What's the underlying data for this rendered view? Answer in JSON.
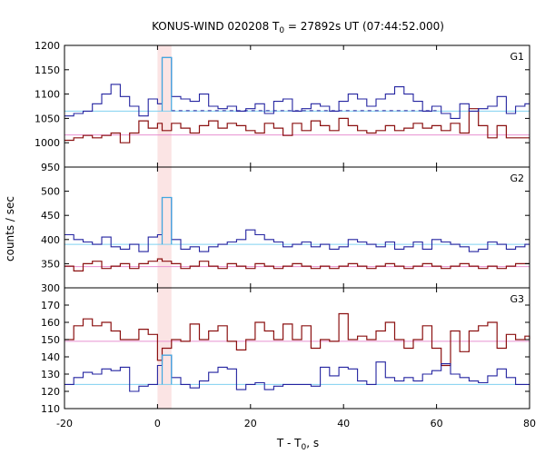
{
  "chart_data": {
    "type": "line",
    "title": {
      "prefix": "KONUS-WIND 020208 T",
      "sub": "0",
      "suffix": " = 27892s UT (07:44:52.000)"
    },
    "xlabel": {
      "prefix": "T - T",
      "sub": "0",
      "suffix": ", s"
    },
    "ylabel": "counts / sec",
    "xlim": [
      -20,
      80
    ],
    "xticks": [
      -20,
      0,
      20,
      40,
      60,
      80
    ],
    "highlight_band": {
      "x": [
        0,
        3
      ],
      "color": "#fbe4e4"
    },
    "colors": {
      "blue": "#2323a0",
      "red": "#8b1010",
      "cyan": "#40a8e0",
      "light_cyan": "#7fd0f0",
      "pink": "#e890d0"
    },
    "panels": [
      {
        "name": "G1",
        "ylim": [
          950,
          1200
        ],
        "yticks": [
          950,
          1000,
          1050,
          1100,
          1150,
          1200
        ],
        "cyan_level": 1065,
        "dashed_level": 1066,
        "pink_level": 1016,
        "blue": {
          "x": [
            -20,
            -18,
            -16,
            -14,
            -12,
            -10,
            -8,
            -6,
            -4,
            -2,
            0,
            1,
            3,
            5,
            7,
            9,
            11,
            13,
            15,
            17,
            19,
            21,
            23,
            25,
            27,
            29,
            31,
            33,
            35,
            37,
            39,
            41,
            43,
            45,
            47,
            49,
            51,
            53,
            55,
            57,
            59,
            61,
            63,
            65,
            67,
            69,
            71,
            73,
            75,
            77,
            79,
            80
          ],
          "y": [
            1055,
            1060,
            1065,
            1080,
            1100,
            1120,
            1095,
            1075,
            1055,
            1090,
            1080,
            1175,
            1095,
            1090,
            1085,
            1100,
            1075,
            1070,
            1075,
            1065,
            1070,
            1080,
            1060,
            1085,
            1090,
            1065,
            1070,
            1080,
            1075,
            1065,
            1085,
            1100,
            1090,
            1075,
            1090,
            1100,
            1115,
            1100,
            1085,
            1065,
            1075,
            1060,
            1050,
            1080,
            1065,
            1070,
            1075,
            1095,
            1060,
            1075,
            1080,
            1080
          ]
        },
        "red": {
          "x": [
            -20,
            -18,
            -16,
            -14,
            -12,
            -10,
            -8,
            -6,
            -4,
            -2,
            0,
            1,
            3,
            5,
            7,
            9,
            11,
            13,
            15,
            17,
            19,
            21,
            23,
            25,
            27,
            29,
            31,
            33,
            35,
            37,
            39,
            41,
            43,
            45,
            47,
            49,
            51,
            53,
            55,
            57,
            59,
            61,
            63,
            65,
            67,
            69,
            71,
            73,
            75,
            77,
            79,
            80
          ],
          "y": [
            1005,
            1010,
            1015,
            1010,
            1015,
            1020,
            1000,
            1020,
            1045,
            1030,
            1040,
            1025,
            1040,
            1030,
            1020,
            1035,
            1045,
            1030,
            1040,
            1035,
            1025,
            1020,
            1040,
            1030,
            1015,
            1040,
            1025,
            1045,
            1035,
            1025,
            1050,
            1035,
            1025,
            1020,
            1025,
            1035,
            1025,
            1030,
            1040,
            1030,
            1035,
            1025,
            1040,
            1020,
            1070,
            1035,
            1010,
            1035,
            1010,
            1010,
            1010,
            1010
          ]
        }
      },
      {
        "name": "G2",
        "ylim": [
          300,
          550
        ],
        "yticks": [
          300,
          350,
          400,
          450,
          500
        ],
        "cyan_level": 390,
        "pink_level": 344,
        "blue": {
          "x": [
            -20,
            -18,
            -16,
            -14,
            -12,
            -10,
            -8,
            -6,
            -4,
            -2,
            0,
            1,
            3,
            5,
            7,
            9,
            11,
            13,
            15,
            17,
            19,
            21,
            23,
            25,
            27,
            29,
            31,
            33,
            35,
            37,
            39,
            41,
            43,
            45,
            47,
            49,
            51,
            53,
            55,
            57,
            59,
            61,
            63,
            65,
            67,
            69,
            71,
            73,
            75,
            77,
            79,
            80
          ],
          "y": [
            410,
            400,
            395,
            390,
            405,
            385,
            380,
            390,
            375,
            405,
            410,
            487,
            400,
            380,
            385,
            375,
            385,
            390,
            395,
            400,
            420,
            410,
            400,
            395,
            385,
            390,
            395,
            385,
            390,
            380,
            385,
            400,
            395,
            390,
            385,
            395,
            380,
            385,
            395,
            380,
            400,
            395,
            390,
            385,
            375,
            380,
            395,
            390,
            380,
            385,
            390,
            390
          ]
        },
        "red": {
          "x": [
            -20,
            -18,
            -16,
            -14,
            -12,
            -10,
            -8,
            -6,
            -4,
            -2,
            0,
            1,
            3,
            5,
            7,
            9,
            11,
            13,
            15,
            17,
            19,
            21,
            23,
            25,
            27,
            29,
            31,
            33,
            35,
            37,
            39,
            41,
            43,
            45,
            47,
            49,
            51,
            53,
            55,
            57,
            59,
            61,
            63,
            65,
            67,
            69,
            71,
            73,
            75,
            77,
            79,
            80
          ],
          "y": [
            345,
            335,
            350,
            355,
            340,
            345,
            350,
            340,
            350,
            355,
            360,
            355,
            350,
            340,
            345,
            355,
            345,
            340,
            350,
            345,
            340,
            350,
            345,
            340,
            345,
            350,
            345,
            340,
            345,
            340,
            345,
            350,
            345,
            340,
            345,
            350,
            345,
            340,
            345,
            350,
            345,
            340,
            345,
            350,
            345,
            340,
            345,
            340,
            345,
            350,
            350,
            350
          ]
        }
      },
      {
        "name": "G3",
        "ylim": [
          110,
          180
        ],
        "yticks": [
          110,
          120,
          130,
          140,
          150,
          160,
          170
        ],
        "cyan_level": 124,
        "pink_level": 149,
        "blue": {
          "x": [
            -20,
            -18,
            -16,
            -14,
            -12,
            -10,
            -8,
            -6,
            -4,
            -2,
            0,
            1,
            3,
            5,
            7,
            9,
            11,
            13,
            15,
            17,
            19,
            21,
            23,
            25,
            27,
            29,
            31,
            33,
            35,
            37,
            39,
            41,
            43,
            45,
            47,
            49,
            51,
            53,
            55,
            57,
            59,
            61,
            63,
            65,
            67,
            69,
            71,
            73,
            75,
            77,
            79,
            80
          ],
          "y": [
            124,
            128,
            131,
            130,
            133,
            132,
            134,
            120,
            123,
            124,
            135,
            141,
            128,
            124,
            122,
            126,
            131,
            134,
            133,
            121,
            124,
            125,
            121,
            123,
            124,
            124,
            124,
            123,
            134,
            129,
            134,
            133,
            126,
            124,
            137,
            128,
            126,
            128,
            126,
            130,
            132,
            136,
            130,
            128,
            126,
            125,
            129,
            133,
            128,
            124,
            124,
            124
          ]
        },
        "red": {
          "x": [
            -20,
            -18,
            -16,
            -14,
            -12,
            -10,
            -8,
            -6,
            -4,
            -2,
            0,
            1,
            3,
            5,
            7,
            9,
            11,
            13,
            15,
            17,
            19,
            21,
            23,
            25,
            27,
            29,
            31,
            33,
            35,
            37,
            39,
            41,
            43,
            45,
            47,
            49,
            51,
            53,
            55,
            57,
            59,
            61,
            63,
            65,
            67,
            69,
            71,
            73,
            75,
            77,
            79,
            80
          ],
          "y": [
            150,
            158,
            162,
            158,
            160,
            155,
            150,
            150,
            156,
            153,
            138,
            145,
            150,
            149,
            159,
            150,
            155,
            158,
            149,
            144,
            150,
            160,
            155,
            150,
            159,
            150,
            158,
            145,
            150,
            149,
            165,
            150,
            152,
            150,
            155,
            160,
            150,
            145,
            150,
            158,
            145,
            135,
            155,
            143,
            155,
            158,
            160,
            145,
            153,
            150,
            152,
            150
          ]
        }
      }
    ]
  }
}
